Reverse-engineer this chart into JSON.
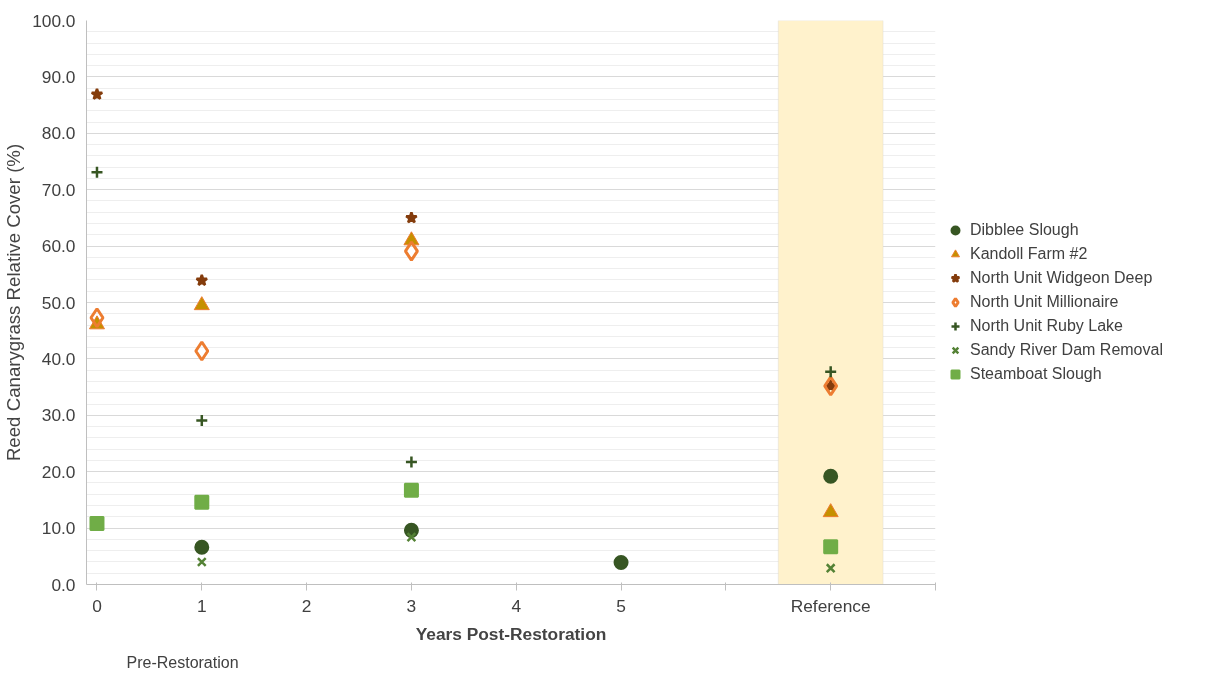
{
  "chart_data": {
    "type": "scatter",
    "xlabel": "Years Post-Restoration",
    "ylabel": "Reed Canarygrass Relative Cover (%)",
    "annotations": [
      "Pre-Restoration"
    ],
    "xlim": [
      -0.1,
      8
    ],
    "xticks": [
      0,
      1,
      2,
      3,
      4,
      5,
      {
        "value": 6,
        "label": null
      },
      {
        "value": 7,
        "label": "Reference"
      },
      {
        "value": 8,
        "label": null
      }
    ],
    "ylim": [
      0,
      100
    ],
    "yticks": [
      {
        "value": 0,
        "label": "0.0"
      },
      {
        "value": 10,
        "label": "10.0"
      },
      {
        "value": 20,
        "label": "20.0"
      },
      {
        "value": 30,
        "label": "30.0"
      },
      {
        "value": 40,
        "label": "40.0"
      },
      {
        "value": 50,
        "label": "50.0"
      },
      {
        "value": 60,
        "label": "60.0"
      },
      {
        "value": 70,
        "label": "70.0"
      },
      {
        "value": 80,
        "label": "80.0"
      },
      {
        "value": 90,
        "label": "90.0"
      },
      {
        "value": 100,
        "label": "100.0"
      }
    ],
    "grid": "y",
    "legend": "right",
    "bands": [
      {
        "axis": "x",
        "from": 6.5,
        "to": 7.5,
        "color": "#fff2cc"
      }
    ],
    "series": [
      {
        "name": "Dibblee Slough",
        "color": "#375623",
        "marker": "circle",
        "x": [
          1,
          3,
          5,
          7
        ],
        "values": [
          6.6,
          9.6,
          3.9,
          19.2
        ]
      },
      {
        "name": "Kandoll Farm #2",
        "color": "#c59000",
        "marker": "triangle",
        "x": [
          0,
          1,
          3,
          7
        ],
        "values": [
          46.1,
          49.5,
          61,
          12.8
        ]
      },
      {
        "name": "North Unit Widgeon Deep",
        "color": "#843c0c",
        "marker": "star",
        "x": [
          0,
          1,
          3,
          7
        ],
        "values": [
          86.9,
          53.9,
          65,
          35.2
        ]
      },
      {
        "name": "North Unit Millionaire",
        "color": "#ed7d31",
        "marker": "diamond",
        "x": [
          0,
          1,
          3,
          7
        ],
        "values": [
          47.3,
          41.4,
          59.1,
          35.2
        ]
      },
      {
        "name": "North Unit Ruby Lake",
        "color": "#375623",
        "marker": "cross",
        "x": [
          0,
          1,
          3,
          7
        ],
        "values": [
          73.1,
          29.1,
          21.7,
          37.7
        ]
      },
      {
        "name": "Sandy River Dam Removal",
        "color": "#548235",
        "marker": "x",
        "x": [
          1,
          3,
          7
        ],
        "values": [
          4.0,
          8.4,
          2.9
        ]
      },
      {
        "name": "Steamboat Slough",
        "color": "#70ad47",
        "marker": "square",
        "x": [
          0,
          1,
          3,
          7
        ],
        "values": [
          10.8,
          14.6,
          16.7,
          6.7
        ]
      }
    ]
  }
}
